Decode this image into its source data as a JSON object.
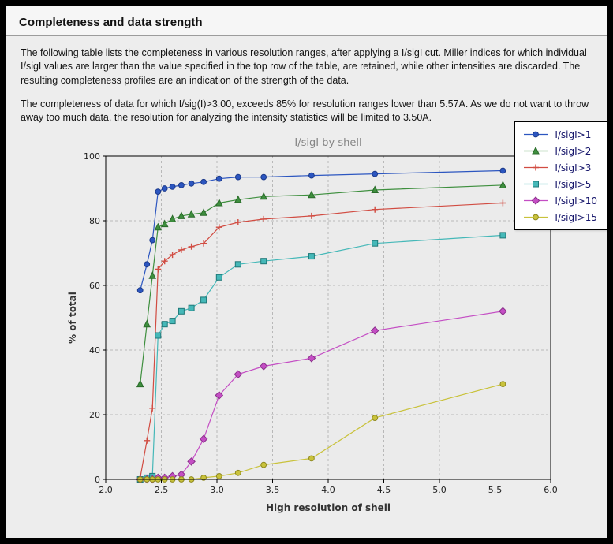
{
  "window": {
    "title": "Completeness and data strength"
  },
  "body_text": {
    "para1": "The following table lists the completeness in various resolution ranges, after applying a I/sigI cut. Miller indices for which individual I/sigI values are larger than the value specified in the top row of the table, are retained, while other intensities are discarded. The resulting completeness profiles are an indication of the strength of the data.",
    "para2": "The completeness of data for which I/sig(I)>3.00, exceeds  85% for resolution ranges lower than 5.57A. As we do not want to throw away too much data, the resolution for analyzing the intensity statistics will be limited to 3.50A."
  },
  "chart_data": {
    "type": "line",
    "title": "I/sigI by shell",
    "xlabel": "High resolution of shell",
    "ylabel": "% of total",
    "xlim": [
      2.0,
      6.0
    ],
    "ylim": [
      0,
      100
    ],
    "x_ticks": [
      2.0,
      2.5,
      3.0,
      3.5,
      4.0,
      4.5,
      5.0,
      5.5,
      6.0
    ],
    "y_ticks": [
      0,
      20,
      40,
      60,
      80,
      100
    ],
    "grid": "dashed",
    "legend_position": "top-right",
    "x": [
      2.31,
      2.37,
      2.42,
      2.47,
      2.53,
      2.6,
      2.68,
      2.77,
      2.88,
      3.02,
      3.19,
      3.42,
      3.85,
      4.42,
      5.57
    ],
    "series": [
      {
        "name": "I/sigI>1",
        "marker": "circle",
        "color": "#2c56c0",
        "edge": "#1c3a8a",
        "values": [
          58.5,
          66.5,
          74,
          89,
          90,
          90.5,
          91,
          91.5,
          92,
          93,
          93.5,
          93.5,
          94,
          94.5,
          95.5
        ]
      },
      {
        "name": "I/sigI>2",
        "marker": "triangle",
        "color": "#3e8f3e",
        "edge": "#2a6b2a",
        "values": [
          29.5,
          48,
          63,
          78,
          79,
          80.5,
          81.5,
          82,
          82.5,
          85.5,
          86.5,
          87.5,
          88,
          89.5,
          91
        ]
      },
      {
        "name": "I/sigI>3",
        "marker": "plus",
        "color": "#d14c42",
        "edge": "#a33229",
        "values": [
          0.5,
          12,
          22,
          65,
          67.5,
          69.5,
          71,
          72,
          73,
          78,
          79.5,
          80.5,
          81.5,
          83.5,
          85.5
        ]
      },
      {
        "name": "I/sigI>5",
        "marker": "square",
        "color": "#45b8b8",
        "edge": "#1e7878",
        "values": [
          0,
          0.5,
          1,
          44.5,
          48,
          49,
          52,
          53,
          55.5,
          62.5,
          66.5,
          67.5,
          69,
          73,
          75.5
        ]
      },
      {
        "name": "I/sigI>10",
        "marker": "diamond",
        "color": "#c44ec4",
        "edge": "#8a2f8a",
        "values": [
          0,
          0,
          0,
          0.5,
          0.5,
          1,
          1.5,
          5.5,
          12.5,
          26,
          32.5,
          35,
          37.5,
          46,
          52
        ]
      },
      {
        "name": "I/sigI>15",
        "marker": "circle",
        "color": "#c9c23b",
        "edge": "#8f8a20",
        "values": [
          0,
          0,
          0,
          0,
          0,
          0,
          0,
          0,
          0.5,
          1,
          2,
          4.5,
          6.5,
          19,
          29.5
        ]
      }
    ]
  }
}
